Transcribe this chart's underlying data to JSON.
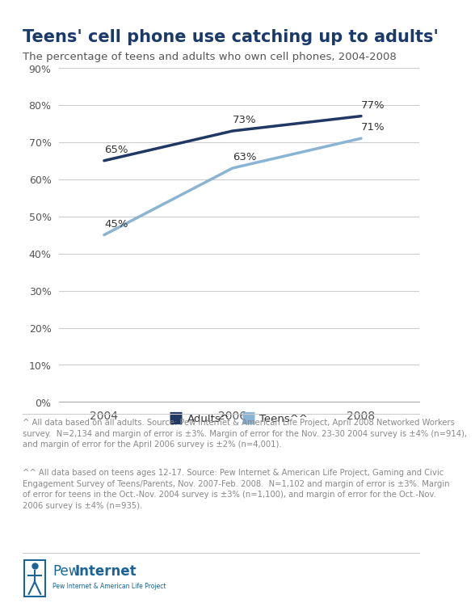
{
  "title": "Teens' cell phone use catching up to adults'",
  "subtitle": "The percentage of teens and adults who own cell phones, 2004-2008",
  "title_color": "#1a3a6b",
  "subtitle_color": "#555555",
  "adults_years": [
    2004,
    2006,
    2008
  ],
  "adults_values": [
    0.65,
    0.73,
    0.77
  ],
  "adults_labels": [
    "65%",
    "73%",
    "77%"
  ],
  "teens_years": [
    2004,
    2006,
    2008
  ],
  "teens_values": [
    0.45,
    0.63,
    0.71
  ],
  "teens_labels": [
    "45%",
    "63%",
    "71%"
  ],
  "adults_color": "#1f3864",
  "teens_color": "#8ab4d4",
  "ylim": [
    0.0,
    0.9
  ],
  "yticks": [
    0.0,
    0.1,
    0.2,
    0.3,
    0.4,
    0.5,
    0.6,
    0.7,
    0.8,
    0.9
  ],
  "ytick_labels": [
    "0%",
    "10%",
    "20%",
    "30%",
    "40%",
    "50%",
    "60%",
    "70%",
    "80%",
    "90%"
  ],
  "xticks": [
    2004,
    2006,
    2008
  ],
  "xlim": [
    2003.3,
    2008.9
  ],
  "legend_adults": "Adults^",
  "legend_teens": "Teens^^",
  "footnote1": "^ All data based on all adults. Source: Pew Internet & American Life Project, April 2008 Networked Workers\nsurvey.  N=2,134 and margin of error is ±3%. Margin of error for the Nov. 23-30 2004 survey is ±4% (n=914),\nand margin of error for the April 2006 survey is ±2% (n=4,001).",
  "footnote2": "^^ All data based on teens ages 12-17. Source: Pew Internet & American Life Project, Gaming and Civic\nEngagement Survey of Teens/Parents, Nov. 2007-Feb. 2008.  N=1,102 and margin of error is ±3%. Margin\nof error for teens in the Oct.-Nov. 2004 survey is ±3% (n=1,100), and margin of error for the Oct.-Nov.\n2006 survey is ±4% (n=935).",
  "footnote_color": "#888888",
  "bg_color": "#ffffff",
  "plot_bg_color": "#ffffff",
  "grid_color": "#cccccc",
  "line_width": 2.5,
  "title_fontsize": 15,
  "subtitle_fontsize": 9.5,
  "label_fontsize": 9.5,
  "tick_fontsize": 9,
  "footnote_fontsize": 7.2,
  "legend_fontsize": 9.5,
  "top_border_color": "#1a3a6b"
}
